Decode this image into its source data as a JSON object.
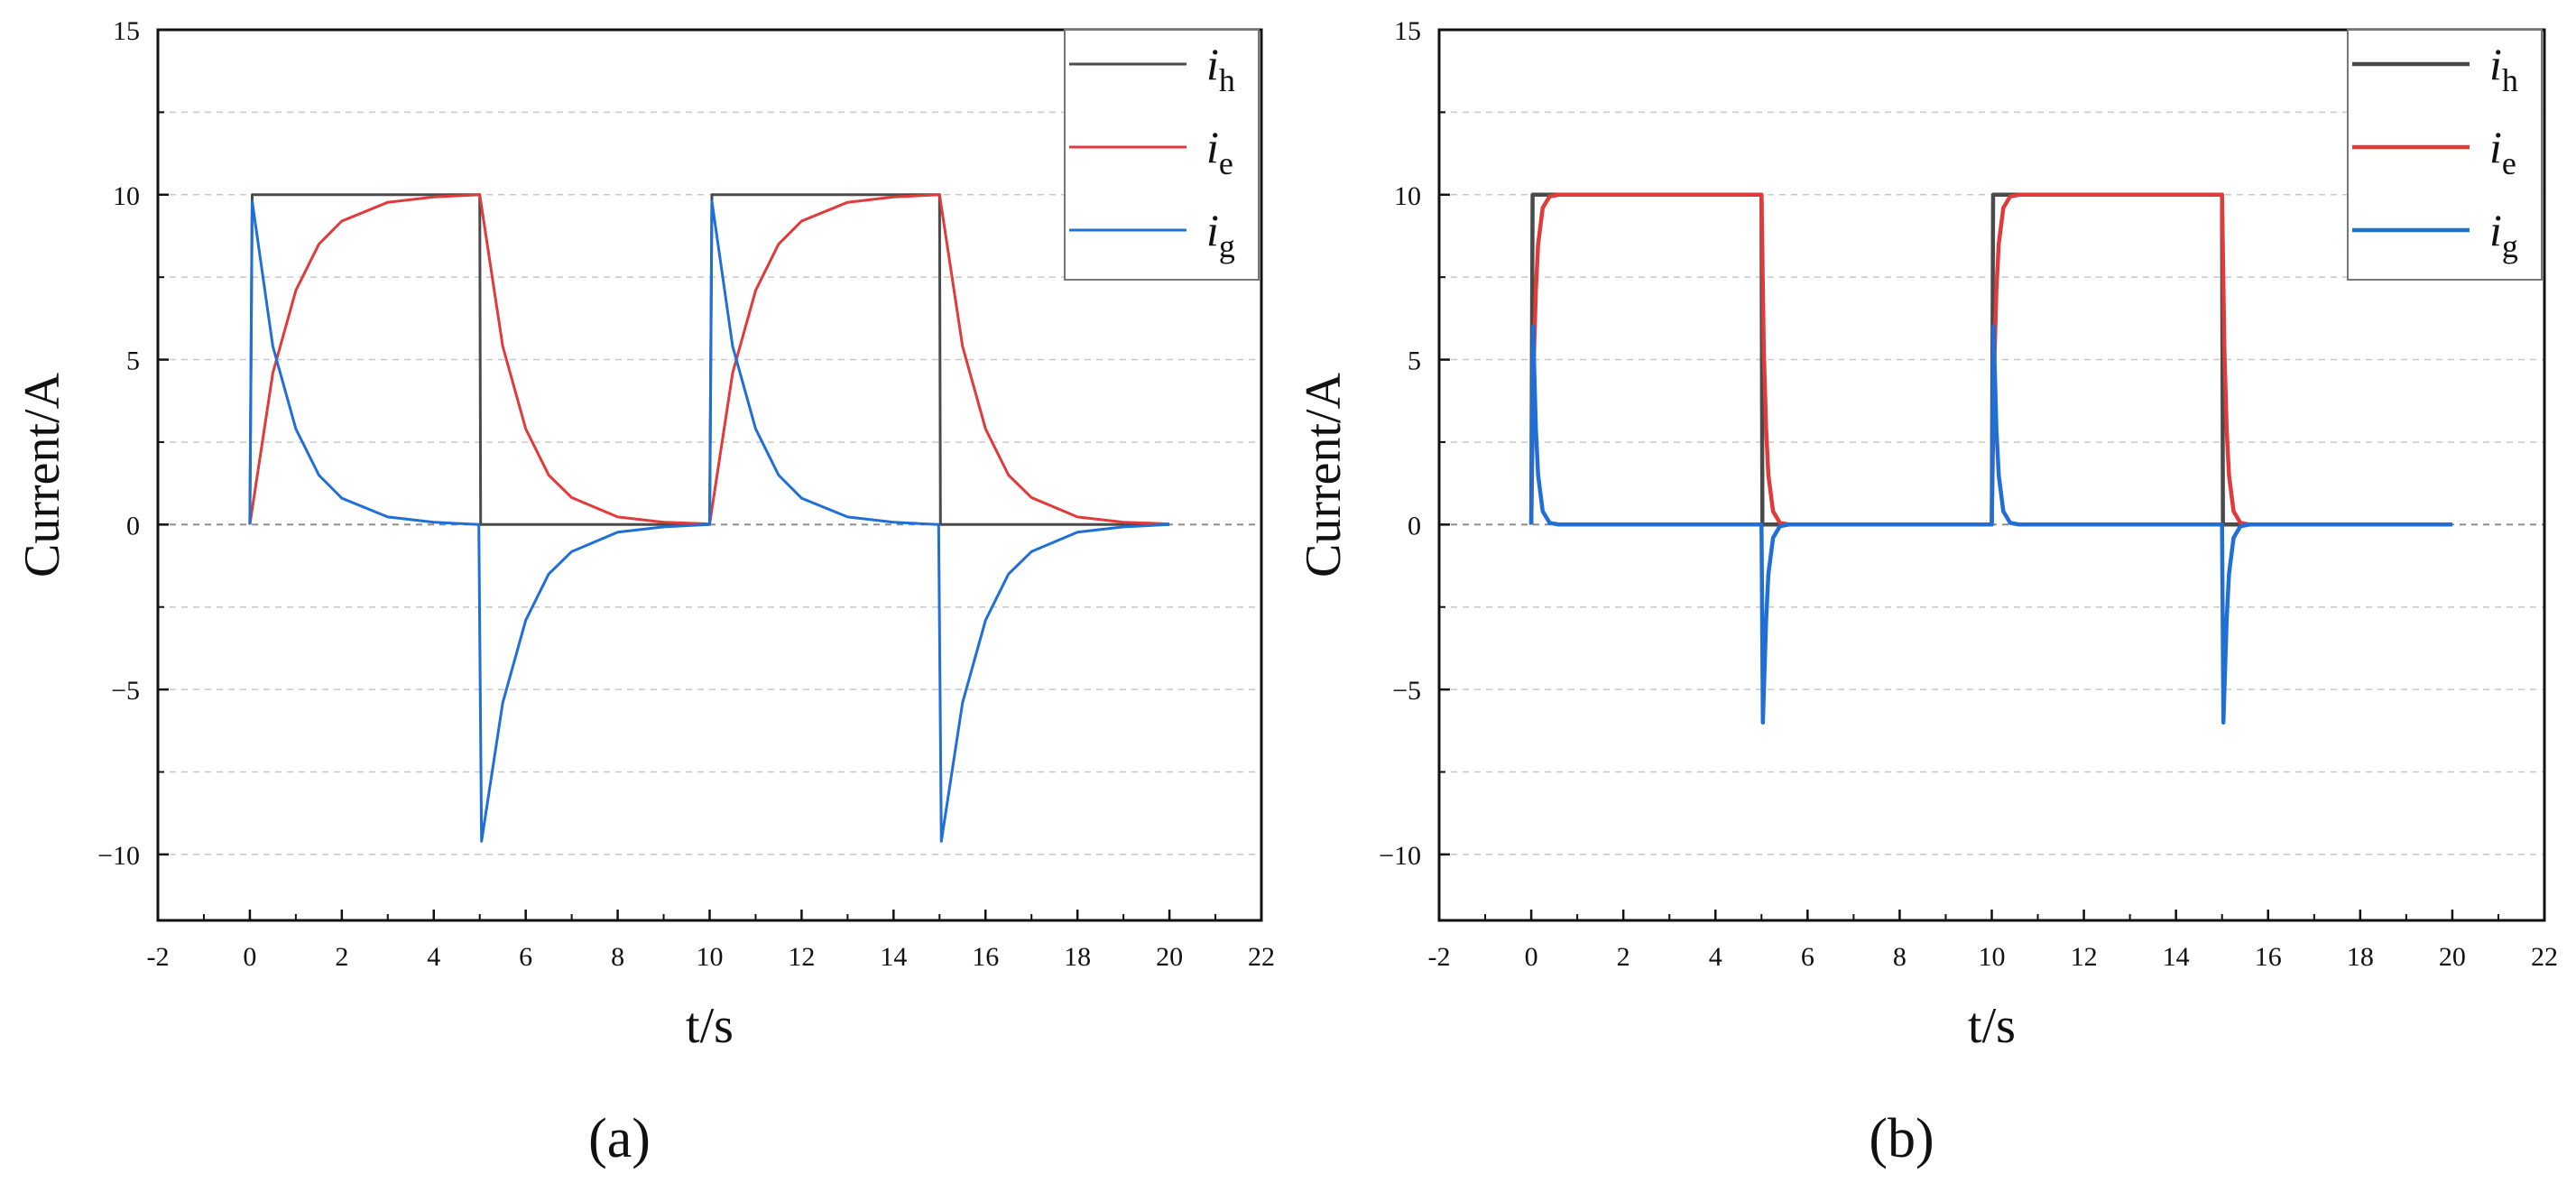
{
  "chart_data": [
    {
      "type": "line",
      "panel_label": "(a)",
      "xlabel": "t/s",
      "ylabel": "Current/A",
      "xlim": [
        -2,
        22
      ],
      "ylim": [
        -12,
        15
      ],
      "xticks": [
        -2,
        0,
        2,
        4,
        6,
        8,
        10,
        12,
        14,
        16,
        18,
        20,
        22
      ],
      "yticks": [
        -10,
        -5,
        0,
        5,
        10,
        15
      ],
      "xtick_labels": [
        "-2",
        "0",
        "2",
        "4",
        "6",
        "8",
        "10",
        "12",
        "14",
        "16",
        "18",
        "20",
        "22"
      ],
      "ytick_labels": [
        "−10",
        "−5",
        "0",
        "5",
        "10",
        "15"
      ],
      "grid": "dashed horizontal",
      "legend_position": "top-right",
      "series": [
        {
          "name": "i",
          "subscript": "h",
          "color": "#4a4a4a",
          "description": "square pulse current",
          "x": [
            0,
            0.05,
            5,
            5.02,
            10,
            10.05,
            15,
            15.02,
            20
          ],
          "y": [
            0,
            10,
            10,
            0,
            0,
            10,
            10,
            0,
            0
          ]
        },
        {
          "name": "i",
          "subscript": "e",
          "color": "#e03a3a",
          "description": "first-order response, tau about 0.8 s",
          "x": [
            0,
            0.5,
            1,
            1.5,
            2,
            3,
            4,
            5,
            5.5,
            6,
            6.5,
            7,
            8,
            9,
            10,
            10.5,
            11,
            11.5,
            12,
            13,
            14,
            15,
            15.5,
            16,
            16.5,
            17,
            18,
            19,
            20
          ],
          "y": [
            0,
            4.6,
            7.1,
            8.5,
            9.2,
            9.77,
            9.93,
            10,
            5.4,
            2.9,
            1.5,
            0.82,
            0.23,
            0.07,
            0.02,
            4.6,
            7.1,
            8.5,
            9.2,
            9.77,
            9.93,
            10,
            5.4,
            2.9,
            1.5,
            0.82,
            0.23,
            0.07,
            0.02
          ]
        },
        {
          "name": "i",
          "subscript": "g",
          "color": "#1f6fd6",
          "description": "difference current i_h - i_e",
          "x": [
            0,
            0.05,
            0.5,
            1,
            1.5,
            2,
            3,
            4,
            4.98,
            5.04,
            5.5,
            6,
            6.5,
            7,
            8,
            9,
            10,
            10.05,
            10.5,
            11,
            11.5,
            12,
            13,
            14,
            14.98,
            15.04,
            15.5,
            16,
            16.5,
            17,
            18,
            19,
            20
          ],
          "y": [
            0,
            9.8,
            5.4,
            2.9,
            1.5,
            0.8,
            0.23,
            0.07,
            0,
            -9.6,
            -5.4,
            -2.9,
            -1.5,
            -0.82,
            -0.23,
            -0.07,
            0,
            9.8,
            5.4,
            2.9,
            1.5,
            0.8,
            0.23,
            0.07,
            0,
            -9.6,
            -5.4,
            -2.9,
            -1.5,
            -0.82,
            -0.23,
            -0.07,
            0
          ]
        }
      ]
    },
    {
      "type": "line",
      "panel_label": "(b)",
      "xlabel": "t/s",
      "ylabel": "Current/A",
      "xlim": [
        -2,
        22
      ],
      "ylim": [
        -12,
        15
      ],
      "xticks": [
        -2,
        0,
        2,
        4,
        6,
        8,
        10,
        12,
        14,
        16,
        18,
        20,
        22
      ],
      "yticks": [
        -10,
        -5,
        0,
        5,
        10,
        15
      ],
      "xtick_labels": [
        "-2",
        "0",
        "2",
        "4",
        "6",
        "8",
        "10",
        "12",
        "14",
        "16",
        "18",
        "20",
        "22"
      ],
      "ytick_labels": [
        "−10",
        "−5",
        "0",
        "5",
        "10",
        "15"
      ],
      "grid": "dashed horizontal",
      "legend_position": "top-right",
      "series": [
        {
          "name": "i",
          "subscript": "h",
          "color": "#4a4a4a",
          "description": "square pulse current",
          "x": [
            0,
            0.03,
            5,
            5.02,
            10,
            10.03,
            15,
            15.02,
            20
          ],
          "y": [
            0,
            10,
            10,
            0,
            0,
            10,
            10,
            0,
            0
          ]
        },
        {
          "name": "i",
          "subscript": "e",
          "color": "#e03a3a",
          "description": "fast first-order response, tau about 0.08 s",
          "x": [
            0,
            0.05,
            0.1,
            0.15,
            0.25,
            0.4,
            0.6,
            5,
            5.05,
            5.1,
            5.15,
            5.25,
            5.4,
            5.6,
            10,
            10.05,
            10.1,
            10.15,
            10.25,
            10.4,
            10.6,
            15,
            15.05,
            15.1,
            15.15,
            15.25,
            15.4,
            15.6,
            20
          ],
          "y": [
            0,
            4.7,
            7.1,
            8.5,
            9.6,
            9.95,
            10,
            10,
            5.3,
            2.9,
            1.5,
            0.4,
            0.05,
            0,
            0,
            4.7,
            7.1,
            8.5,
            9.6,
            9.95,
            10,
            10,
            5.3,
            2.9,
            1.5,
            0.4,
            0.05,
            0,
            0
          ]
        },
        {
          "name": "i",
          "subscript": "g",
          "color": "#1f6fd6",
          "description": "difference current i_h - i_e",
          "x": [
            0,
            0.04,
            0.1,
            0.15,
            0.25,
            0.4,
            0.6,
            5,
            5.03,
            5.1,
            5.15,
            5.25,
            5.4,
            5.6,
            10,
            10.04,
            10.1,
            10.15,
            10.25,
            10.4,
            10.6,
            15,
            15.03,
            15.1,
            15.15,
            15.25,
            15.4,
            15.6,
            20
          ],
          "y": [
            0,
            6.0,
            2.9,
            1.5,
            0.4,
            0.05,
            0,
            0,
            -6.0,
            -2.9,
            -1.5,
            -0.4,
            -0.05,
            0,
            0,
            6.0,
            2.9,
            1.5,
            0.4,
            0.05,
            0,
            0,
            -6.0,
            -2.9,
            -1.5,
            -0.4,
            -0.05,
            0,
            0
          ]
        }
      ]
    }
  ]
}
